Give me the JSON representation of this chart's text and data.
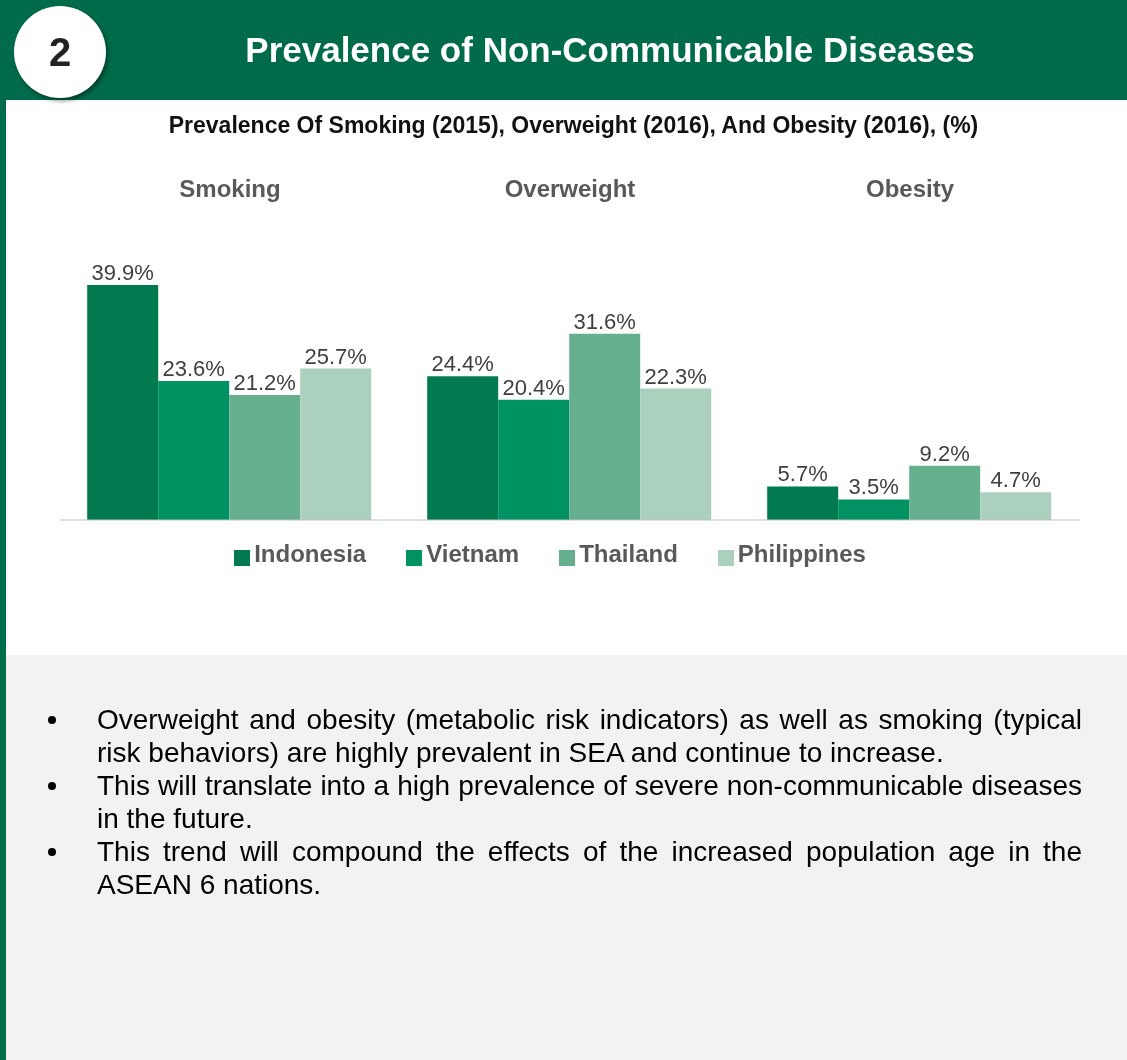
{
  "chart_data": {
    "type": "bar",
    "title": "Prevalence of Non-Communicable Diseases",
    "subtitle": "Prevalence Of Smoking (2015), Overweight (2016), And Obesity (2016), (%)",
    "categories": [
      "Smoking",
      "Overweight",
      "Obesity"
    ],
    "series": [
      {
        "name": "Indonesia",
        "color": "#007a4e",
        "values": [
          39.9,
          24.4,
          5.7
        ],
        "value_labels": [
          "39.9%",
          "24.4%",
          "5.7%"
        ]
      },
      {
        "name": "Vietnam",
        "color": "#009262",
        "values": [
          23.6,
          20.4,
          3.5
        ],
        "value_labels": [
          "23.6%",
          "20.4%",
          "3.5%"
        ]
      },
      {
        "name": "Thailand",
        "color": "#67b08f",
        "values": [
          21.2,
          31.6,
          9.2
        ],
        "value_labels": [
          "21.2%",
          "31.6%",
          "9.2%"
        ]
      },
      {
        "name": "Philippines",
        "color": "#abd1be",
        "values": [
          25.7,
          22.3,
          4.7
        ],
        "value_labels": [
          "25.7%",
          "22.3%",
          "4.7%"
        ]
      }
    ],
    "tick_labels": "x",
    "legend": "bottom",
    "grid": false,
    "annotations": [
      "2",
      "Overweight and obesity (metabolic risk indicators) as well as smoking (typical risk behaviors) are highly prevalent in SEA and continue to increase.",
      "This will translate into a high prevalence of severe non-communicable diseases in the future.",
      "This trend will compound the effects of the increased population age in the ASEAN 6 nations."
    ]
  }
}
